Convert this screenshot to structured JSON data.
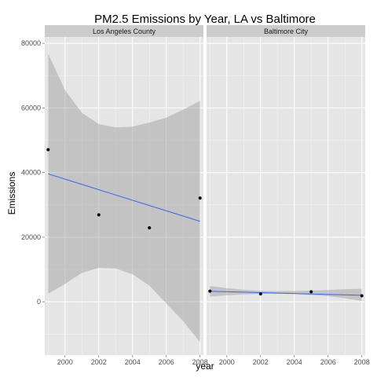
{
  "chart_data": {
    "type": "scatter",
    "title": "PM2.5 Emissions by Year, LA vs Baltimore",
    "xlabel": "year",
    "ylabel": "Emissions",
    "x_ticks": [
      2000,
      2002,
      2004,
      2006,
      2008
    ],
    "y_ticks": [
      0,
      20000,
      40000,
      60000,
      80000
    ],
    "xlim": [
      1998.8,
      2008.2
    ],
    "ylim": [
      -16500,
      82000
    ],
    "grid": true,
    "colors": {
      "panel_bg": "#e5e5e5",
      "grid_major": "#ffffff",
      "grid_minor": "#f2f2f2",
      "strip_bg": "#cccccc",
      "ribbon": "#999999",
      "trend_line": "#3366ff",
      "points": "#000000"
    },
    "panels": [
      {
        "label": "Los Angeles County",
        "points": [
          {
            "x": 1999,
            "y": 47100
          },
          {
            "x": 2002,
            "y": 26900
          },
          {
            "x": 2005,
            "y": 22900
          },
          {
            "x": 2008,
            "y": 32100
          }
        ],
        "trend": {
          "x": [
            1999,
            2008
          ],
          "y": [
            39600,
            24900
          ]
        },
        "ribbon": {
          "x": [
            1999,
            2000,
            2001,
            2002,
            2003,
            2004,
            2005,
            2006,
            2007,
            2008
          ],
          "upper": [
            76800,
            65500,
            58500,
            55000,
            54000,
            54200,
            55500,
            57000,
            59500,
            62200
          ],
          "lower": [
            2500,
            5500,
            9000,
            10500,
            10300,
            8500,
            5000,
            -500,
            -6000,
            -12500
          ]
        }
      },
      {
        "label": "Baltimore City",
        "points": [
          {
            "x": 1999,
            "y": 3300
          },
          {
            "x": 2002,
            "y": 2450
          },
          {
            "x": 2005,
            "y": 3100
          },
          {
            "x": 2008,
            "y": 1850
          }
        ],
        "trend": {
          "x": [
            1999,
            2008
          ],
          "y": [
            3250,
            2000
          ]
        },
        "ribbon": {
          "x": [
            1999,
            2000,
            2001,
            2002,
            2003,
            2004,
            2005,
            2006,
            2007,
            2008
          ],
          "upper": [
            4900,
            4200,
            3700,
            3400,
            3300,
            3350,
            3450,
            3650,
            3900,
            4000
          ],
          "lower": [
            1600,
            2000,
            2300,
            2450,
            2500,
            2400,
            2150,
            1750,
            1100,
            200
          ]
        }
      }
    ]
  }
}
